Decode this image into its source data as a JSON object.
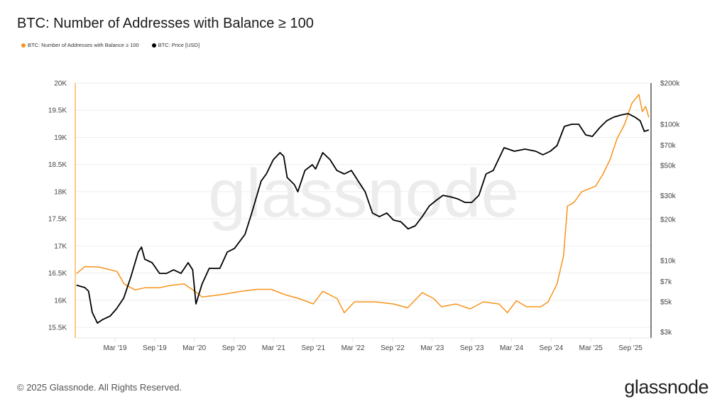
{
  "header": {
    "title": "BTC: Number of Addresses with Balance ≥ 100"
  },
  "footer": {
    "copyright": "© 2025 Glassnode. All Rights Reserved.",
    "logo": "glassnode",
    "watermark": "glassnode"
  },
  "colors": {
    "addresses": "#f7931a",
    "price": "#000000",
    "grid": "#eeeeee"
  },
  "chart_data": {
    "type": "line",
    "title": "BTC: Number of Addresses with Balance ≥ 100",
    "legend_position": "top-left",
    "grid": true,
    "x_range": [
      "2018-09-01",
      "2025-12-05"
    ],
    "x_ticks": [
      "Mar '19",
      "Sep '19",
      "Mar '20",
      "Sep '20",
      "Mar '21",
      "Sep '21",
      "Mar '22",
      "Sep '22",
      "Mar '23",
      "Sep '23",
      "Mar '24",
      "Sep '24",
      "Mar '25",
      "Sep '25"
    ],
    "y_left": {
      "scale": "linear",
      "range": [
        15500,
        20000
      ],
      "ticks": [
        {
          "v": 20000,
          "label": "20K"
        },
        {
          "v": 19500,
          "label": "19.5K"
        },
        {
          "v": 19000,
          "label": "19K"
        },
        {
          "v": 18500,
          "label": "18.5K"
        },
        {
          "v": 18000,
          "label": "18K"
        },
        {
          "v": 17500,
          "label": "17.5K"
        },
        {
          "v": 17000,
          "label": "17K"
        },
        {
          "v": 16500,
          "label": "16.5K"
        },
        {
          "v": 16000,
          "label": "16K"
        },
        {
          "v": 15500,
          "label": "15.5K"
        }
      ]
    },
    "y_right": {
      "scale": "log",
      "range": [
        3000,
        200000
      ],
      "ticks": [
        {
          "v": 200000,
          "label": "$200k"
        },
        {
          "v": 100000,
          "label": "$100k"
        },
        {
          "v": 70000,
          "label": "$70k"
        },
        {
          "v": 50000,
          "label": "$50k"
        },
        {
          "v": 30000,
          "label": "$30k"
        },
        {
          "v": 20000,
          "label": "$20k"
        },
        {
          "v": 10000,
          "label": "$10k"
        },
        {
          "v": 7000,
          "label": "$7k"
        },
        {
          "v": 5000,
          "label": "$5k"
        },
        {
          "v": 3000,
          "label": "$3k"
        }
      ]
    },
    "series": [
      {
        "name": "BTC: Number of Addresses with Balance ≥ 100",
        "axis": "left",
        "color": "#f7931a",
        "points": [
          [
            "2018-09-07",
            16490
          ],
          [
            "2018-10-15",
            16620
          ],
          [
            "2018-12-20",
            16610
          ],
          [
            "2019-03-12",
            16530
          ],
          [
            "2019-04-14",
            16300
          ],
          [
            "2019-06-03",
            16190
          ],
          [
            "2019-07-20",
            16230
          ],
          [
            "2019-09-24",
            16230
          ],
          [
            "2019-11-10",
            16270
          ],
          [
            "2020-01-15",
            16300
          ],
          [
            "2020-03-05",
            16165
          ],
          [
            "2020-04-07",
            16060
          ],
          [
            "2020-07-01",
            16100
          ],
          [
            "2020-10-05",
            16165
          ],
          [
            "2020-12-15",
            16200
          ],
          [
            "2021-02-20",
            16200
          ],
          [
            "2021-04-25",
            16100
          ],
          [
            "2021-06-28",
            16030
          ],
          [
            "2021-09-01",
            15930
          ],
          [
            "2021-10-15",
            16165
          ],
          [
            "2021-12-20",
            16030
          ],
          [
            "2022-01-22",
            15770
          ],
          [
            "2022-03-10",
            15970
          ],
          [
            "2022-06-15",
            15970
          ],
          [
            "2022-09-06",
            15930
          ],
          [
            "2022-11-10",
            15860
          ],
          [
            "2023-01-16",
            16140
          ],
          [
            "2023-03-10",
            16030
          ],
          [
            "2023-04-15",
            15880
          ],
          [
            "2023-06-20",
            15930
          ],
          [
            "2023-08-25",
            15840
          ],
          [
            "2023-10-25",
            15970
          ],
          [
            "2024-01-05",
            15930
          ],
          [
            "2024-02-12",
            15770
          ],
          [
            "2024-03-25",
            15990
          ],
          [
            "2024-05-10",
            15880
          ],
          [
            "2024-07-15",
            15880
          ],
          [
            "2024-08-18",
            15970
          ],
          [
            "2024-09-28",
            16300
          ],
          [
            "2024-10-28",
            16820
          ],
          [
            "2024-11-15",
            17735
          ],
          [
            "2024-12-15",
            17800
          ],
          [
            "2025-01-20",
            18000
          ],
          [
            "2025-03-25",
            18100
          ],
          [
            "2025-04-28",
            18325
          ],
          [
            "2025-05-30",
            18590
          ],
          [
            "2025-07-02",
            18980
          ],
          [
            "2025-08-05",
            19240
          ],
          [
            "2025-09-08",
            19630
          ],
          [
            "2025-10-10",
            19790
          ],
          [
            "2025-10-26",
            19475
          ],
          [
            "2025-11-10",
            19570
          ],
          [
            "2025-11-25",
            19370
          ]
        ]
      },
      {
        "name": "BTC: Price [USD]",
        "axis": "right",
        "color": "#000000",
        "points": [
          [
            "2018-09-07",
            6600
          ],
          [
            "2018-10-15",
            6340
          ],
          [
            "2018-11-01",
            5970
          ],
          [
            "2018-11-18",
            4170
          ],
          [
            "2018-12-12",
            3480
          ],
          [
            "2019-01-06",
            3700
          ],
          [
            "2019-02-09",
            3920
          ],
          [
            "2019-03-10",
            4430
          ],
          [
            "2019-04-12",
            5300
          ],
          [
            "2019-05-15",
            7590
          ],
          [
            "2019-06-18",
            11550
          ],
          [
            "2019-07-03",
            12560
          ],
          [
            "2019-07-18",
            10230
          ],
          [
            "2019-08-21",
            9650
          ],
          [
            "2019-09-24",
            8060
          ],
          [
            "2019-10-27",
            8060
          ],
          [
            "2019-11-28",
            8560
          ],
          [
            "2020-01-01",
            8060
          ],
          [
            "2020-02-03",
            9650
          ],
          [
            "2020-02-24",
            8560
          ],
          [
            "2020-03-10",
            4810
          ],
          [
            "2020-04-07",
            6730
          ],
          [
            "2020-05-10",
            8770
          ],
          [
            "2020-06-28",
            8770
          ],
          [
            "2020-08-01",
            11550
          ],
          [
            "2020-09-03",
            12270
          ],
          [
            "2020-10-22",
            15590
          ],
          [
            "2020-11-22",
            22340
          ],
          [
            "2021-01-04",
            38300
          ],
          [
            "2021-01-28",
            43200
          ],
          [
            "2021-03-01",
            54900
          ],
          [
            "2021-04-01",
            61900
          ],
          [
            "2021-04-18",
            58300
          ],
          [
            "2021-05-04",
            40700
          ],
          [
            "2021-06-06",
            36100
          ],
          [
            "2021-06-22",
            32000
          ],
          [
            "2021-07-25",
            45800
          ],
          [
            "2021-08-28",
            50500
          ],
          [
            "2021-09-12",
            47000
          ],
          [
            "2021-10-15",
            61900
          ],
          [
            "2021-11-18",
            54900
          ],
          [
            "2021-12-19",
            45800
          ],
          [
            "2022-01-22",
            43200
          ],
          [
            "2022-02-24",
            45800
          ],
          [
            "2022-03-27",
            38300
          ],
          [
            "2022-04-28",
            32000
          ],
          [
            "2022-06-01",
            22340
          ],
          [
            "2022-07-03",
            21000
          ],
          [
            "2022-08-06",
            22340
          ],
          [
            "2022-09-06",
            19800
          ],
          [
            "2022-10-09",
            19300
          ],
          [
            "2022-11-12",
            17100
          ],
          [
            "2022-12-15",
            18000
          ],
          [
            "2023-01-16",
            21000
          ],
          [
            "2023-02-18",
            25200
          ],
          [
            "2023-03-22",
            27700
          ],
          [
            "2023-04-22",
            30100
          ],
          [
            "2023-05-25",
            29400
          ],
          [
            "2023-06-28",
            28400
          ],
          [
            "2023-08-01",
            26700
          ],
          [
            "2023-09-01",
            26700
          ],
          [
            "2023-10-04",
            30100
          ],
          [
            "2023-11-06",
            43200
          ],
          [
            "2023-12-09",
            45800
          ],
          [
            "2024-01-28",
            67300
          ],
          [
            "2024-03-16",
            63400
          ],
          [
            "2024-05-04",
            65700
          ],
          [
            "2024-06-22",
            63400
          ],
          [
            "2024-07-25",
            59700
          ],
          [
            "2024-08-28",
            63400
          ],
          [
            "2024-09-28",
            69800
          ],
          [
            "2024-11-01",
            96500
          ],
          [
            "2024-12-04",
            100000
          ],
          [
            "2025-01-06",
            100000
          ],
          [
            "2025-02-07",
            83500
          ],
          [
            "2025-03-10",
            81500
          ],
          [
            "2025-04-12",
            94200
          ],
          [
            "2025-05-15",
            106000
          ],
          [
            "2025-06-16",
            112700
          ],
          [
            "2025-07-19",
            116900
          ],
          [
            "2025-08-21",
            119700
          ],
          [
            "2025-09-22",
            112700
          ],
          [
            "2025-10-16",
            106000
          ],
          [
            "2025-11-04",
            88700
          ],
          [
            "2025-11-25",
            90900
          ]
        ]
      }
    ]
  }
}
